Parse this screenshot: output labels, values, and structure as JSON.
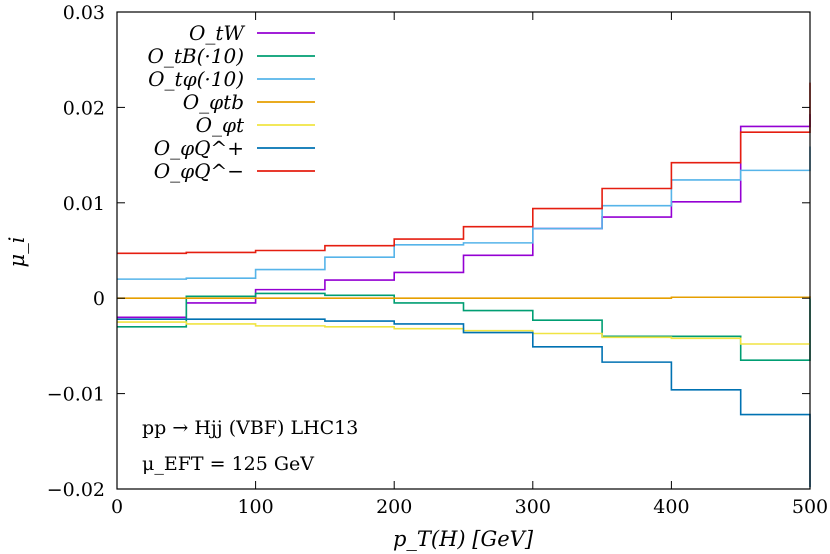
{
  "chart_data": {
    "type": "line",
    "xlabel": "p_T(H) [GeV]",
    "ylabel": "μ_i",
    "xlim": [
      0,
      500
    ],
    "ylim": [
      -0.02,
      0.03
    ],
    "x_ticks": [
      "0",
      "100",
      "200",
      "300",
      "400",
      "500"
    ],
    "y_ticks": [
      "−0.02",
      "−0.01",
      "0",
      "0.01",
      "0.02",
      "0.03"
    ],
    "bin_edges": [
      0,
      50,
      100,
      150,
      200,
      250,
      300,
      350,
      400,
      450,
      500
    ],
    "grid": false,
    "legend_position": "top-right",
    "annotations": [
      "pp → Hjj (VBF) LHC13",
      "μ_EFT = 125 GeV"
    ],
    "series": [
      {
        "name": "O_tW",
        "color": "#9400d3",
        "values": [
          -0.002,
          -0.0005,
          0.0009,
          0.0019,
          0.0027,
          0.0045,
          0.0073,
          0.0085,
          0.0101,
          0.018,
          0.0193
        ]
      },
      {
        "name": "O_tB(·10)",
        "color": "#009e73",
        "values": [
          -0.003,
          0.0002,
          0.0005,
          0.0003,
          -0.0005,
          -0.0013,
          -0.0023,
          -0.004,
          -0.004,
          -0.0065,
          0.0
        ]
      },
      {
        "name": "O_tφ(·10)",
        "color": "#56b4e9",
        "values": [
          0.002,
          0.0021,
          0.003,
          0.0043,
          0.0056,
          0.0058,
          0.0073,
          0.0097,
          0.0124,
          0.0134,
          0.0159
        ]
      },
      {
        "name": "O_φtb",
        "color": "#e69f00",
        "values": [
          0.0,
          0.0,
          0.0,
          0.0,
          0.0,
          0.0,
          0.0,
          0.0,
          0.0001,
          0.0001,
          0.0002
        ]
      },
      {
        "name": "O_φt",
        "color": "#f0e442",
        "values": [
          -0.0025,
          -0.0027,
          -0.0029,
          -0.003,
          -0.0032,
          -0.0034,
          -0.0037,
          -0.0041,
          -0.0042,
          -0.0048,
          -0.0048
        ]
      },
      {
        "name": "O_φQ^+",
        "color": "#0072b2",
        "values": [
          -0.0022,
          -0.0022,
          -0.0022,
          -0.0024,
          -0.0027,
          -0.0036,
          -0.0051,
          -0.0067,
          -0.0096,
          -0.0122,
          -0.0198
        ]
      },
      {
        "name": "O_φQ^−",
        "color": "#e51e10",
        "values": [
          0.0047,
          0.0048,
          0.005,
          0.0055,
          0.0062,
          0.0075,
          0.0094,
          0.0115,
          0.0142,
          0.0174,
          0.0226
        ]
      }
    ]
  }
}
